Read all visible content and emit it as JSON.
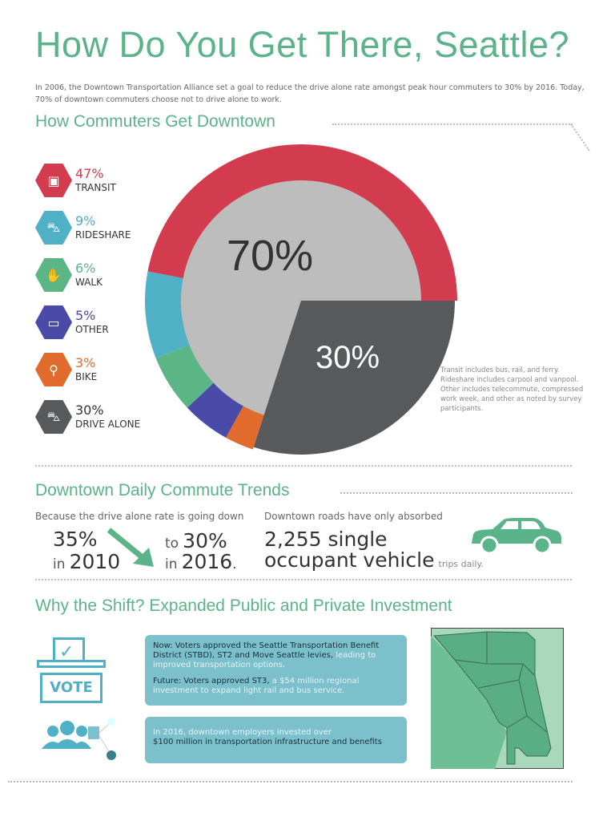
{
  "title": "How Do You Get There, Seattle?",
  "intro": "In 2006, the Downtown Transportation Alliance set a goal to reduce the drive alone rate amongst peak hour commuters to 30% by 2016. Today, 70% of downtown commuters choose not to drive alone to work.",
  "section1": "How Commuters Get Downtown",
  "chart_data": {
    "type": "pie",
    "title": "How Commuters Get Downtown",
    "categories": [
      "Transit",
      "Rideshare",
      "Walk",
      "Other",
      "Bike",
      "Drive Alone"
    ],
    "values": [
      47,
      9,
      6,
      5,
      3,
      30
    ],
    "labels": [
      "47%",
      "9%",
      "6%",
      "5%",
      "3%",
      "30%"
    ],
    "names": [
      "TRANSIT",
      "RIDESHARE",
      "WALK",
      "OTHER",
      "BIKE",
      "DRIVE ALONE"
    ],
    "colors": [
      "#d23c4e",
      "#4fb0c6",
      "#5bb585",
      "#4a4aa8",
      "#e06b2c",
      "#58595b"
    ],
    "icons": [
      "bus-icon",
      "car-icon",
      "walk-icon",
      "laptop-icon",
      "bike-icon",
      "car-icon"
    ],
    "center_labels": {
      "not_alone": "70%",
      "alone": "30%"
    }
  },
  "note": "Transit includes bus, rail, and ferry. Rideshare includes carpool and vanpool. Other includes telecommute, compressed work week, and other as noted by survey participants.",
  "section2": "Downtown Daily Commute Trends",
  "trend": {
    "caption": "Because the drive alone rate is going down",
    "from_value": "35%",
    "from_in": "in",
    "from_year": "2010",
    "to_word": "to",
    "to_value": "30%",
    "to_in": "in",
    "to_year": "2016",
    "period": "."
  },
  "roads": {
    "caption": "Downtown roads have only absorbed",
    "line1": "2,255 single",
    "line2": "occupant vehicle",
    "suffix": "trips daily."
  },
  "section3": "Why the Shift? Expanded Public and Private Investment",
  "vote_label": "VOTE",
  "box1": {
    "now_bold": "Now: Voters approved the Seattle Transportation Benefit District (STBD), ST2 and Move Seattle levies,",
    "now_rest": " leading to improved transportation options.",
    "future_bold": "Future: Voters approved ST3,",
    "future_rest": " a $54 million regional investment to expand light rail and bus service."
  },
  "box2": {
    "line1": "In 2016, downtown employers invested over",
    "line2": "$100 million in transportation infrastructure and benefits"
  }
}
